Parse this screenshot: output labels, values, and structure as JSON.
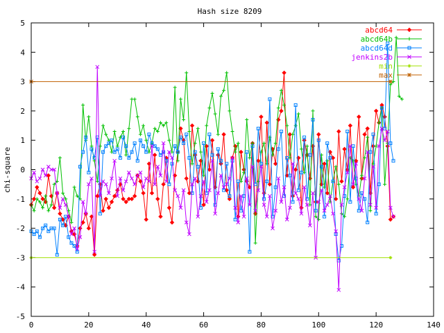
{
  "chart_data": {
    "type": "line",
    "title": "Hash size 8209",
    "xlabel": "",
    "ylabel": "chi-square",
    "xlim": [
      0,
      140
    ],
    "ylim": [
      -5,
      5
    ],
    "xticks": [
      0,
      20,
      40,
      60,
      80,
      100,
      120,
      140
    ],
    "yticks": [
      -5,
      -4,
      -3,
      -2,
      -1,
      0,
      1,
      2,
      3,
      4,
      5
    ],
    "legend_position": "top-right",
    "grid": false,
    "series": [
      {
        "name": "abcd64",
        "color": "#ff0000",
        "marker": "diamond",
        "values": [
          -1.2,
          -1.0,
          -0.6,
          -0.8,
          -1.0,
          -1.1,
          -0.2,
          -0.9,
          -1.3,
          -0.8,
          -1.5,
          -1.7,
          -1.9,
          -1.6,
          -2.1,
          -2.2,
          -2.6,
          -2.0,
          -1.8,
          -1.5,
          -2.0,
          -1.6,
          -2.9,
          -0.9,
          -0.5,
          -1.4,
          -1.0,
          -1.3,
          -1.1,
          -0.9,
          -0.7,
          -0.5,
          -1.0,
          -1.1,
          -1.0,
          -1.0,
          -0.9,
          -0.2,
          -0.4,
          -0.8,
          -1.7,
          0.2,
          -0.8,
          0.5,
          -1.0,
          -1.6,
          -0.5,
          0.4,
          -1.3,
          -1.8,
          -0.2,
          0.6,
          1.4,
          1.0,
          -0.3,
          -0.8,
          1.5,
          0.5,
          -0.4,
          0.3,
          -1.2,
          0.8,
          0.0,
          1.0,
          -0.6,
          0.5,
          0.2,
          1.2,
          -0.7,
          -1.0,
          0.4,
          0.8,
          -1.6,
          0.6,
          0.0,
          -0.4,
          -0.6,
          0.9,
          -1.5,
          0.3,
          1.8,
          -0.8,
          1.6,
          -0.5,
          0.7,
          0.2,
          1.7,
          2.0,
          3.3,
          -0.2,
          1.2,
          -0.9,
          0.0,
          0.4,
          -1.3,
          1.0,
          0.5,
          -0.3,
          0.8,
          -1.1,
          1.2,
          -0.5,
          0.2,
          -0.8,
          0.6,
          0.4,
          -1.0,
          1.3,
          -0.4,
          0.7,
          0.0,
          1.5,
          -0.6,
          0.3,
          1.8,
          -0.3,
          1.2,
          1.4,
          -0.8,
          0.8,
          2.0,
          1.6,
          2.2,
          1.8,
          0.8,
          -1.7,
          -1.6
        ]
      },
      {
        "name": "abcd64b",
        "color": "#00c000",
        "marker": "plus",
        "values": [
          -1.2,
          -1.4,
          -1.0,
          -1.1,
          -1.3,
          -0.9,
          -1.4,
          -1.2,
          -0.5,
          -0.4,
          0.4,
          -0.8,
          -1.0,
          -1.4,
          -1.8,
          -0.6,
          -0.9,
          -1.0,
          2.2,
          1.0,
          1.8,
          0.8,
          0.3,
          -0.4,
          0.8,
          1.5,
          1.2,
          1.0,
          0.6,
          1.3,
          0.8,
          1.1,
          1.3,
          0.5,
          1.4,
          2.4,
          2.4,
          1.8,
          1.2,
          1.5,
          1.0,
          0.6,
          0.9,
          1.4,
          1.3,
          1.6,
          1.5,
          1.6,
          1.0,
          0.6,
          2.8,
          0.3,
          2.4,
          1.7,
          3.3,
          1.3,
          0.2,
          0.9,
          1.4,
          0.6,
          -0.2,
          1.5,
          2.1,
          2.6,
          1.9,
          1.2,
          2.5,
          2.7,
          3.3,
          2.0,
          1.3,
          0.6,
          0.9,
          -0.4,
          -0.1,
          1.7,
          0.4,
          0.9,
          -2.5,
          -0.4,
          0.6,
          0.9,
          0.2,
          1.1,
          0.5,
          0.9,
          2.1,
          2.7,
          2.2,
          1.5,
          0.4,
          1.2,
          1.5,
          1.9,
          0.7,
          -0.1,
          0.8,
          -1.2,
          2.0,
          -1.6,
          -1.7,
          0.5,
          -0.6,
          0.3,
          -1.1,
          -0.4,
          0.1,
          -0.5,
          -1.5,
          -1.6,
          -1.0,
          0.4,
          0.3,
          -0.5,
          -0.9,
          -0.2,
          0.4,
          1.1,
          -1.4,
          0.2,
          0.8,
          1.6,
          2.1,
          -0.5,
          0.9,
          2.9,
          3.0,
          4.5,
          2.5,
          2.4
        ]
      },
      {
        "name": "abcd64d",
        "color": "#0080ff",
        "marker": "square",
        "values": [
          -2.1,
          -2.2,
          -2.1,
          -2.3,
          -2.0,
          -1.9,
          -2.1,
          -2.0,
          -2.0,
          -2.9,
          -1.7,
          -1.9,
          -1.6,
          -2.3,
          -2.5,
          -2.6,
          -2.8,
          0.1,
          0.6,
          1.1,
          -0.1,
          0.7,
          0.4,
          1.1,
          -1.5,
          0.6,
          0.8,
          0.9,
          1.0,
          0.6,
          0.7,
          0.4,
          1.1,
          0.8,
          0.4,
          0.6,
          0.9,
          0.3,
          1.0,
          0.8,
          0.6,
          1.2,
          0.9,
          0.8,
          0.7,
          0.5,
          0.6,
          0.3,
          -0.5,
          0.2,
          0.8,
          0.6,
          1.1,
          0.9,
          1.2,
          0.4,
          -0.8,
          0.6,
          0.1,
          -1.3,
          0.9,
          -0.8,
          1.2,
          0.5,
          -1.2,
          0.7,
          0.3,
          -0.7,
          0.2,
          -0.9,
          0.3,
          -1.7,
          -0.4,
          -1.4,
          -0.9,
          0.6,
          -2.8,
          0.8,
          -0.5,
          1.4,
          0.2,
          -1.0,
          -0.4,
          2.4,
          -1.6,
          -0.6,
          0.7,
          1.3,
          -0.9,
          0.4,
          -0.2,
          -1.1,
          2.2,
          -0.7,
          -0.1,
          1.1,
          -1.0,
          0.5,
          1.7,
          -1.4,
          1.0,
          0.1,
          -1.6,
          0.9,
          0.4,
          -0.4,
          -2.2,
          -3.1,
          -2.6,
          -0.9,
          1.3,
          -1.1,
          0.8,
          -0.3,
          -1.4,
          -0.8,
          -1.0,
          -1.8,
          0.6,
          1.2,
          -1.5,
          -0.5,
          2.1,
          1.4,
          4.3,
          0.9,
          0.3
        ]
      },
      {
        "name": "jenkins2b",
        "color": "#c000ff",
        "marker": "cross",
        "values": [
          -0.3,
          -0.1,
          -0.4,
          -0.3,
          0.0,
          -0.2,
          0.1,
          0.0,
          0.0,
          -0.8,
          -1.3,
          -1.0,
          -1.2,
          -1.6,
          -2.2,
          -2.0,
          -2.7,
          -2.3,
          -1.1,
          -1.5,
          -0.5,
          -0.3,
          -2.8,
          3.5,
          -0.9,
          -0.4,
          -0.5,
          -0.8,
          -0.3,
          0.3,
          -0.9,
          -0.3,
          -0.7,
          -0.4,
          -0.1,
          -0.3,
          -0.5,
          -0.2,
          -0.1,
          -0.6,
          -0.3,
          -0.4,
          0.8,
          -0.5,
          0.1,
          -0.2,
          0.9,
          -0.4,
          0.6,
          0.4,
          -0.7,
          -0.9,
          -1.3,
          -0.7,
          -1.8,
          -2.2,
          -0.5,
          -0.3,
          -1.6,
          -0.9,
          -0.4,
          -1.1,
          -0.7,
          0.3,
          -1.5,
          -0.8,
          -0.2,
          -0.6,
          -0.5,
          -0.3,
          0.4,
          -1.3,
          -1.8,
          -0.9,
          -1.6,
          -0.3,
          -1.2,
          0.1,
          -1.4,
          -0.7,
          0.1,
          -1.2,
          -1.6,
          -0.9,
          -2.0,
          -1.4,
          -0.3,
          -1.1,
          -0.6,
          -1.7,
          -1.3,
          0.2,
          -0.8,
          -1.0,
          -1.5,
          -0.6,
          -1.2,
          -1.9,
          -0.8,
          -3.0,
          -1.1,
          -0.7,
          -1.4,
          -1.2,
          -0.9,
          -1.5,
          -2.1,
          -4.1,
          -1.2,
          -0.6,
          -0.1,
          0.8,
          -0.5,
          0.2,
          -1.0,
          -1.4,
          -0.3,
          0.6,
          -1.2,
          0.1,
          -1.3,
          0.8,
          1.4,
          1.0,
          1.3,
          -1.3,
          -1.6
        ]
      },
      {
        "name": "min",
        "color": "#a0e000",
        "marker": "star",
        "x": [
          0,
          125
        ],
        "values": [
          -3,
          -3
        ]
      },
      {
        "name": "max",
        "color": "#c06000",
        "marker": "asterisk",
        "x": [
          0,
          125
        ],
        "values": [
          3,
          3
        ]
      }
    ]
  }
}
